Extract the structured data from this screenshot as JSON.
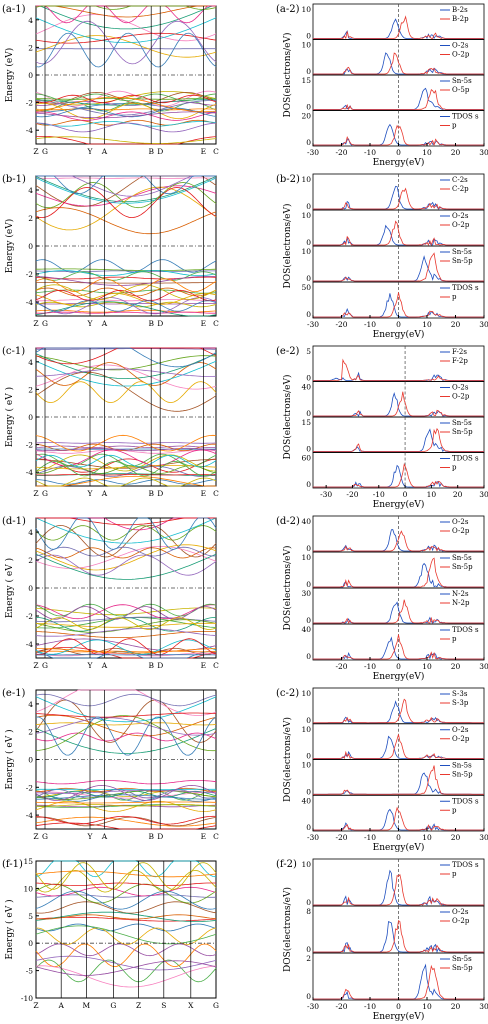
{
  "chart_data": [
    {
      "panel": "(a-1)",
      "type": "line",
      "kind": "band",
      "ylabel": "Energy (eV)",
      "ylim": [
        -5,
        5
      ],
      "yticks": [
        "-4",
        "-2",
        "0",
        "2",
        "4"
      ],
      "kpoints": [
        "Z",
        "G",
        "Y",
        "A",
        "B",
        "D",
        "E",
        "C"
      ],
      "gap_line": 0
    },
    {
      "panel": "(a-2)",
      "type": "line",
      "kind": "dos",
      "xlabel": "Energy(eV)",
      "ylabel": "DOS(electrons/eV)",
      "xlim": [
        -30,
        30
      ],
      "xticks": [
        "-30",
        "-20",
        "-10",
        "0",
        "10",
        "20",
        "30"
      ],
      "subplots": [
        {
          "series": [
            "B-2s",
            "B-2p"
          ],
          "yticks": [
            "0",
            "10"
          ],
          "peak_at": 0
        },
        {
          "series": [
            "O-2s",
            "O-2p"
          ],
          "yticks": [
            "0",
            "10"
          ],
          "peak_at": -3
        },
        {
          "series": [
            "Sn-5s",
            "O-5p"
          ],
          "yticks": [
            "0",
            "10",
            "15"
          ],
          "peak_at": 10
        },
        {
          "series": [
            "TDOS s",
            "p"
          ],
          "yticks": [
            "0",
            "20"
          ],
          "peak_at": -2
        }
      ]
    },
    {
      "panel": "(b-1)",
      "type": "line",
      "kind": "band",
      "ylabel": "Energy (eV)",
      "ylim": [
        -5,
        5
      ],
      "yticks": [
        "-4",
        "-2",
        "0",
        "2",
        "4"
      ],
      "kpoints": [
        "Z",
        "G",
        "Y",
        "A",
        "B",
        "D",
        "E",
        "C"
      ],
      "gap_line": 0
    },
    {
      "panel": "(b-2)",
      "type": "line",
      "kind": "dos",
      "xlabel": "Energy(eV)",
      "ylabel": "DOS(electrons/eV)",
      "xlim": [
        -30,
        30
      ],
      "xticks": [
        "-30",
        "-20",
        "-10",
        "0",
        "10",
        "20",
        "30"
      ],
      "subplots": [
        {
          "series": [
            "C-2s",
            "C-2p"
          ],
          "yticks": [
            "0",
            "10"
          ],
          "peak_at": 0
        },
        {
          "series": [
            "O-2s",
            "O-2p"
          ],
          "yticks": [
            "0",
            "10"
          ],
          "peak_at": -3
        },
        {
          "series": [
            "Sn-5s",
            "Sn-5p"
          ],
          "yticks": [
            "0",
            "10"
          ],
          "peak_at": 10
        },
        {
          "series": [
            "TDOS s",
            "p"
          ],
          "yticks": [
            "0",
            "20",
            "50"
          ],
          "peak_at": -2
        }
      ]
    },
    {
      "panel": "(c-1)",
      "type": "line",
      "kind": "band",
      "ylabel": "Energy ( eV )",
      "ylim": [
        -5,
        5
      ],
      "yticks": [
        "-4",
        "-2",
        "0",
        "2",
        "4"
      ],
      "kpoints": [
        "Z",
        "G",
        "Y",
        "A",
        "B",
        "D",
        "E",
        "C"
      ],
      "gap_line": 0
    },
    {
      "panel": "(e-2)",
      "type": "line",
      "kind": "dos",
      "xlabel": "Energy(eV)",
      "ylabel": "DOS(electrons/eV)",
      "xlim": [
        -35,
        30
      ],
      "xticks": [
        "-30",
        "-20",
        "-10",
        "0",
        "10",
        "20",
        "30"
      ],
      "subplots": [
        {
          "series": [
            "F-2s",
            "F-2p"
          ],
          "yticks": [
            "0",
            "5"
          ],
          "peak_at": -25
        },
        {
          "series": [
            "O-2s",
            "O-2p"
          ],
          "yticks": [
            "0",
            "20",
            "40"
          ],
          "peak_at": -3
        },
        {
          "series": [
            "Sn-5s",
            "Sn-5p"
          ],
          "yticks": [
            "0",
            "5",
            "10",
            "15"
          ],
          "peak_at": 10
        },
        {
          "series": [
            "TDOS s",
            "p"
          ],
          "yticks": [
            "0",
            "20",
            "40",
            "60"
          ],
          "peak_at": -2
        }
      ]
    },
    {
      "panel": "(d-1)",
      "type": "line",
      "kind": "band",
      "ylabel": "Energy ( eV )",
      "ylim": [
        -5,
        5
      ],
      "yticks": [
        "-4",
        "-2",
        "0",
        "2",
        "4"
      ],
      "kpoints": [
        "Z",
        "G",
        "Y",
        "A",
        "B",
        "D",
        "E",
        "C"
      ],
      "gap_line": 0
    },
    {
      "panel": "(d-2)",
      "type": "line",
      "kind": "dos",
      "xlabel": "Energy(eV)",
      "ylabel": "DOS(electrons/eV)",
      "xlim": [
        -30,
        30
      ],
      "xticks": [
        "-20",
        "-10",
        "0",
        "10",
        "20",
        "30"
      ],
      "subplots": [
        {
          "series": [
            "O-2s",
            "O-2p"
          ],
          "yticks": [
            "0",
            "20",
            "40"
          ],
          "peak_at": -1
        },
        {
          "series": [
            "Sn-5s",
            "Sn-5p"
          ],
          "yticks": [
            "0",
            "10"
          ],
          "peak_at": 10
        },
        {
          "series": [
            "N-2s",
            "N-2p"
          ],
          "yticks": [
            "0",
            "10",
            "20",
            "30"
          ],
          "peak_at": 0
        },
        {
          "series": [
            "TDOS s",
            "p"
          ],
          "yticks": [
            "0",
            "20",
            "40"
          ],
          "peak_at": -2
        }
      ]
    },
    {
      "panel": "(e-1)",
      "type": "line",
      "kind": "band",
      "ylabel": "Energy ( eV )",
      "ylim": [
        -5,
        5
      ],
      "yticks": [
        "-4",
        "-2",
        "0",
        "2",
        "4"
      ],
      "kpoints": [
        "Z",
        "G",
        "Y",
        "A",
        "B",
        "D",
        "E",
        "C"
      ],
      "gap_line": 0
    },
    {
      "panel": "(c-2)",
      "type": "line",
      "kind": "dos",
      "xlabel": "Energy(eV)",
      "ylabel": "DOS(electrons/eV)",
      "xlim": [
        -30,
        30
      ],
      "xticks": [
        "-30",
        "-20",
        "-10",
        "0",
        "10",
        "20",
        "30"
      ],
      "subplots": [
        {
          "series": [
            "S-3s",
            "S-3p"
          ],
          "yticks": [
            "0",
            "5",
            "10"
          ],
          "peak_at": 0
        },
        {
          "series": [
            "O-2s",
            "O-2p"
          ],
          "yticks": [
            "0",
            "10"
          ],
          "peak_at": -2
        },
        {
          "series": [
            "Sn-5s",
            "Sn-5p"
          ],
          "yticks": [
            "0",
            "5",
            "10"
          ],
          "peak_at": 10
        },
        {
          "series": [
            "TDOS s",
            "p"
          ],
          "yticks": [
            "0",
            "20",
            "40"
          ],
          "peak_at": -2
        }
      ]
    },
    {
      "panel": "(f-1)",
      "type": "line",
      "kind": "band",
      "ylabel": "Energy ( eV )",
      "ylim": [
        -10,
        15
      ],
      "yticks": [
        "-10",
        "-5",
        "0",
        "5",
        "10",
        "15"
      ],
      "kpoints": [
        "Z",
        "A",
        "M",
        "G",
        "Z",
        "S",
        "X",
        "G"
      ],
      "gap_line": 0
    },
    {
      "panel": "(f-2)",
      "type": "line",
      "kind": "dos",
      "xlabel": "Energy(eV)",
      "ylabel": "DOS(electrons/eV)",
      "xlim": [
        -30,
        30
      ],
      "xticks": [
        "-30",
        "-20",
        "-10",
        "0",
        "10",
        "20",
        "30"
      ],
      "subplots": [
        {
          "series": [
            "TDOS s",
            "p"
          ],
          "yticks": [
            "0",
            "2",
            "4",
            "6",
            "8",
            "10"
          ],
          "peak_at": -2
        },
        {
          "series": [
            "O-2s",
            "O-2p"
          ],
          "yticks": [
            "0",
            "2",
            "4",
            "6",
            "8"
          ],
          "peak_at": -2
        },
        {
          "series": [
            "Sn-5s",
            "Sn-5p"
          ],
          "yticks": [
            "0",
            "1",
            "2"
          ],
          "peak_at": 10
        }
      ]
    }
  ],
  "colors": {
    "s_series": "#1f4fbf",
    "p_series": "#e8392f",
    "axis": "#000000",
    "fermi": "#444444"
  }
}
